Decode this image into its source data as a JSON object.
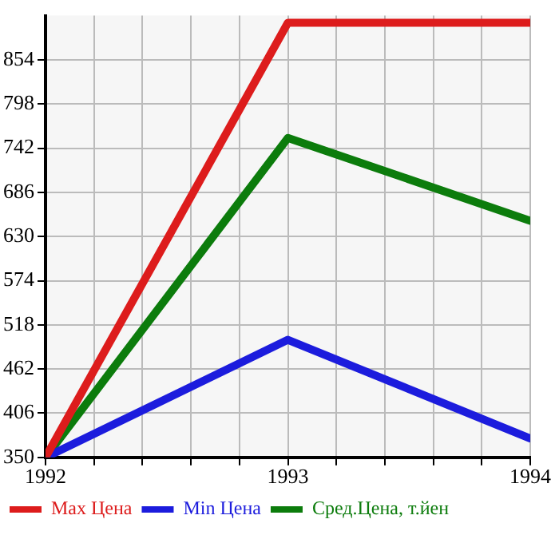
{
  "chart_data": {
    "type": "line",
    "x": [
      1992,
      1993,
      1994
    ],
    "series": [
      {
        "name": "Max Цена",
        "color": "#dd1c1c",
        "values": [
          350,
          901,
          901
        ]
      },
      {
        "name": "Min Цена",
        "color": "#1c1cdd",
        "values": [
          350,
          499,
          374
        ]
      },
      {
        "name": "Сред.Цена, т.йен",
        "color": "#0c7c0c",
        "values": [
          350,
          755,
          650
        ]
      }
    ],
    "xlim": [
      1992,
      1994
    ],
    "xticks": [
      1992,
      {
        "value": 1992.2,
        "label": null
      },
      {
        "value": 1992.4,
        "label": null
      },
      {
        "value": 1992.6,
        "label": null
      },
      {
        "value": 1992.8,
        "label": null
      },
      1993,
      {
        "value": 1993.2,
        "label": null
      },
      {
        "value": 1993.4,
        "label": null
      },
      {
        "value": 1993.6,
        "label": null
      },
      {
        "value": 1993.8,
        "label": null
      },
      1994
    ],
    "ylim": [
      350,
      910
    ],
    "yticks": [
      350,
      406,
      462,
      518,
      574,
      630,
      686,
      742,
      798,
      854
    ],
    "grid": true,
    "legend": "bottom",
    "marker": "none",
    "line_style": "solid"
  }
}
